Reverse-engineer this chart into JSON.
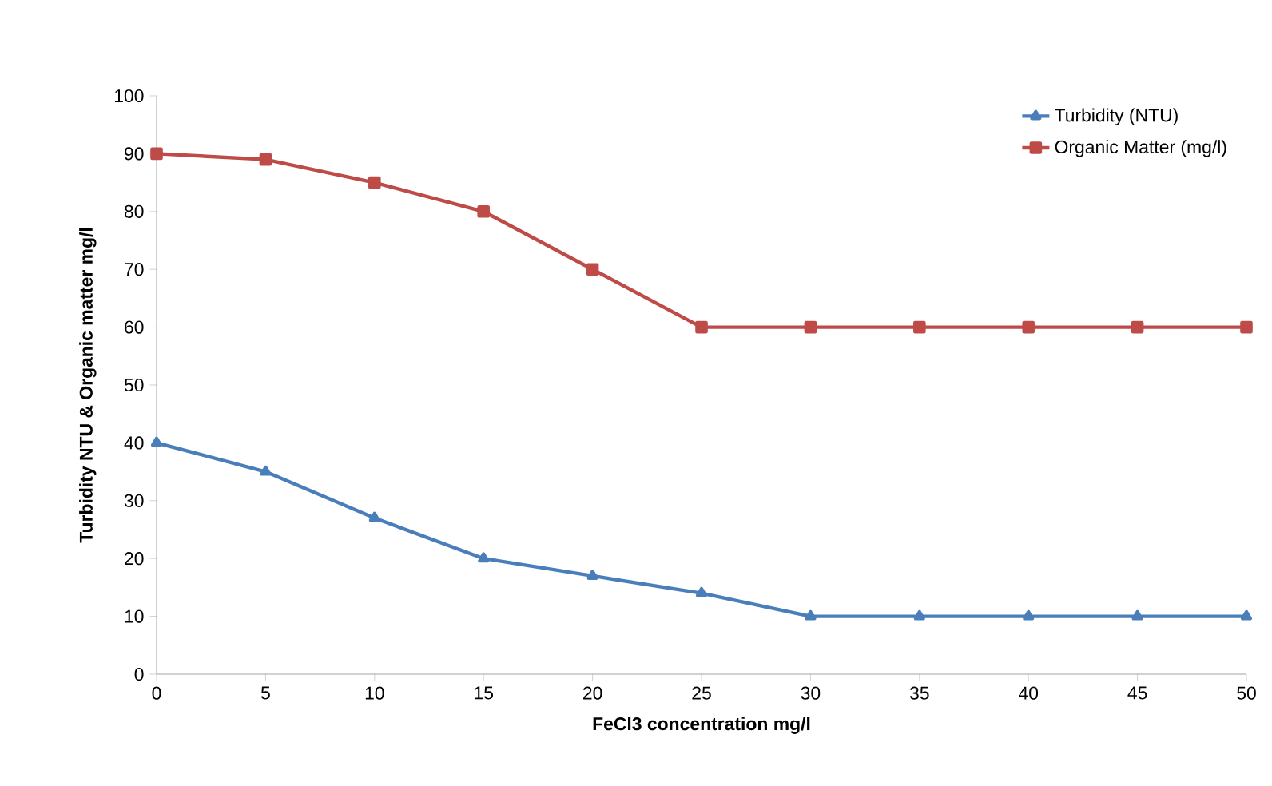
{
  "chart_data": {
    "type": "line",
    "xlabel": "FeCl3 concentration mg/l",
    "ylabel": "Turbidity NTU & Organic matter mg/l",
    "x": [
      0,
      5,
      10,
      15,
      20,
      25,
      30,
      35,
      40,
      45,
      50
    ],
    "series": [
      {
        "name": "Turbidity (NTU)",
        "color": "#4a7ebb",
        "marker": "triangle",
        "values": [
          40,
          35,
          27,
          20,
          17,
          14,
          10,
          10,
          10,
          10,
          10
        ]
      },
      {
        "name": "Organic Matter (mg/l)",
        "color": "#be4b48",
        "marker": "square",
        "values": [
          90,
          89,
          85,
          80,
          70,
          60,
          60,
          60,
          60,
          60,
          60
        ]
      }
    ],
    "xlim": [
      0,
      50
    ],
    "xticks": [
      0,
      5,
      10,
      15,
      20,
      25,
      30,
      35,
      40,
      45,
      50
    ],
    "ylim": [
      0,
      100
    ],
    "yticks": [
      0,
      10,
      20,
      30,
      40,
      50,
      60,
      70,
      80,
      90,
      100
    ],
    "grid": false,
    "legend": "top right",
    "line_style": "solid"
  }
}
